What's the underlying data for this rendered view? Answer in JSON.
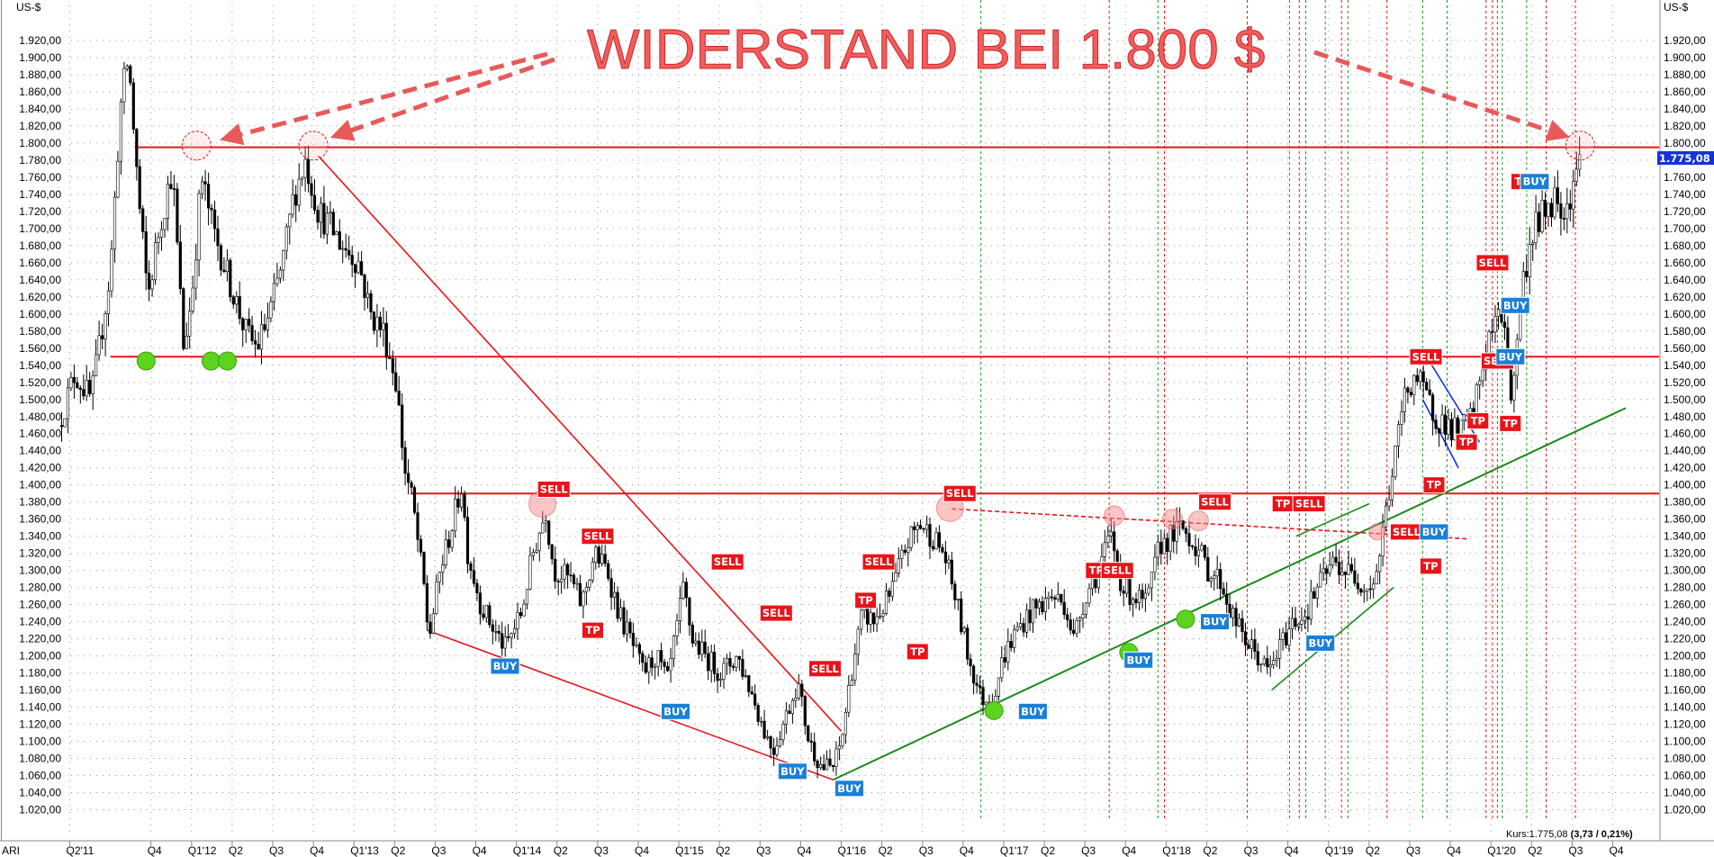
{
  "headline": "WIDERSTAND BEI 1.800 $",
  "unit_left": "US-$",
  "unit_right": "US-$",
  "symbol": "ARI",
  "status_prefix": "Kurs:1.775,08 ",
  "status_bold": "(3,73 / 0,21%)",
  "current_price_label": "1.775,08",
  "colors": {
    "sell": "#e8141a",
    "buy": "#1a7fd6",
    "tp": "#e8141a",
    "resistance": "#e8141a",
    "uptrend": "#1a8a1a",
    "channel": "#1432d6",
    "price_tag": "#1432d6"
  },
  "chart_data": {
    "type": "candlestick",
    "title": "WIDERSTAND BEI 1.800 $",
    "ylabel": "US-$",
    "ylim": [
      1000,
      1940
    ],
    "y_ticks": [
      1020,
      1040,
      1060,
      1080,
      1100,
      1120,
      1140,
      1160,
      1180,
      1200,
      1220,
      1240,
      1260,
      1280,
      1300,
      1320,
      1340,
      1360,
      1380,
      1400,
      1420,
      1440,
      1460,
      1480,
      1500,
      1520,
      1540,
      1560,
      1580,
      1600,
      1620,
      1640,
      1660,
      1680,
      1700,
      1720,
      1740,
      1760,
      1780,
      1800,
      1820,
      1840,
      1860,
      1880,
      1900,
      1920
    ],
    "y_tick_labels": [
      "1.020,00",
      "1.040,00",
      "1.060,00",
      "1.080,00",
      "1.100,00",
      "1.120,00",
      "1.140,00",
      "1.160,00",
      "1.180,00",
      "1.200,00",
      "1.220,00",
      "1.240,00",
      "1.260,00",
      "1.280,00",
      "1.300,00",
      "1.320,00",
      "1.340,00",
      "1.360,00",
      "1.380,00",
      "1.400,00",
      "1.420,00",
      "1.440,00",
      "1.460,00",
      "1.480,00",
      "1.500,00",
      "1.520,00",
      "1.540,00",
      "1.560,00",
      "1.580,00",
      "1.600,00",
      "1.620,00",
      "1.640,00",
      "1.660,00",
      "1.680,00",
      "1.700,00",
      "1.720,00",
      "1.740,00",
      "1.760,00",
      "1.780,00",
      "1.800,00",
      "1.820,00",
      "1.840,00",
      "1.860,00",
      "1.880,00",
      "1.900,00",
      "1.920,00"
    ],
    "x_ticks": [
      2011.25,
      2011.75,
      2012.0,
      2012.25,
      2012.5,
      2012.75,
      2013.0,
      2013.25,
      2013.5,
      2013.75,
      2014.0,
      2014.25,
      2014.5,
      2014.75,
      2015.0,
      2015.25,
      2015.5,
      2015.75,
      2016.0,
      2016.25,
      2016.5,
      2016.75,
      2017.0,
      2017.25,
      2017.5,
      2017.75,
      2018.0,
      2018.25,
      2018.5,
      2018.75,
      2019.0,
      2019.25,
      2019.5,
      2019.75,
      2020.0,
      2020.25,
      2020.5,
      2020.75
    ],
    "x_tick_labels": [
      "Q2'11",
      "Q4",
      "Q1'12",
      "Q2",
      "Q3",
      "Q4",
      "Q1'13",
      "Q2",
      "Q3",
      "Q4",
      "Q1'14",
      "Q2",
      "Q3",
      "Q4",
      "Q1'15",
      "Q2",
      "Q3",
      "Q4",
      "Q1'16",
      "Q2",
      "Q3",
      "Q4",
      "Q1'17",
      "Q2",
      "Q3",
      "Q4",
      "Q1'18",
      "Q2",
      "Q3",
      "Q4",
      "Q1'19",
      "Q2",
      "Q3",
      "Q4",
      "Q1'20",
      "Q2",
      "Q3",
      "Q4"
    ],
    "xlim": [
      2011.2,
      2020.9
    ],
    "price_anchors": [
      [
        2011.2,
        1470
      ],
      [
        2011.3,
        1530
      ],
      [
        2011.4,
        1500
      ],
      [
        2011.45,
        1560
      ],
      [
        2011.52,
        1650
      ],
      [
        2011.58,
        1840
      ],
      [
        2011.63,
        1900
      ],
      [
        2011.7,
        1720
      ],
      [
        2011.75,
        1620
      ],
      [
        2011.82,
        1700
      ],
      [
        2011.9,
        1770
      ],
      [
        2011.97,
        1560
      ],
      [
        2012.02,
        1620
      ],
      [
        2012.08,
        1760
      ],
      [
        2012.15,
        1700
      ],
      [
        2012.25,
        1640
      ],
      [
        2012.35,
        1580
      ],
      [
        2012.42,
        1560
      ],
      [
        2012.5,
        1600
      ],
      [
        2012.58,
        1660
      ],
      [
        2012.65,
        1740
      ],
      [
        2012.72,
        1780
      ],
      [
        2012.8,
        1720
      ],
      [
        2012.88,
        1700
      ],
      [
        2012.95,
        1680
      ],
      [
        2013.05,
        1660
      ],
      [
        2013.12,
        1600
      ],
      [
        2013.2,
        1580
      ],
      [
        2013.28,
        1520
      ],
      [
        2013.33,
        1420
      ],
      [
        2013.38,
        1380
      ],
      [
        2013.45,
        1280
      ],
      [
        2013.48,
        1220
      ],
      [
        2013.55,
        1300
      ],
      [
        2013.62,
        1350
      ],
      [
        2013.68,
        1400
      ],
      [
        2013.72,
        1320
      ],
      [
        2013.8,
        1260
      ],
      [
        2013.88,
        1230
      ],
      [
        2013.95,
        1210
      ],
      [
        2014.05,
        1250
      ],
      [
        2014.12,
        1320
      ],
      [
        2014.2,
        1370
      ],
      [
        2014.25,
        1300
      ],
      [
        2014.35,
        1290
      ],
      [
        2014.42,
        1260
      ],
      [
        2014.5,
        1320
      ],
      [
        2014.58,
        1300
      ],
      [
        2014.65,
        1250
      ],
      [
        2014.72,
        1220
      ],
      [
        2014.8,
        1180
      ],
      [
        2014.88,
        1200
      ],
      [
        2014.95,
        1170
      ],
      [
        2015.05,
        1280
      ],
      [
        2015.1,
        1220
      ],
      [
        2015.18,
        1200
      ],
      [
        2015.28,
        1180
      ],
      [
        2015.38,
        1200
      ],
      [
        2015.48,
        1150
      ],
      [
        2015.55,
        1110
      ],
      [
        2015.6,
        1090
      ],
      [
        2015.68,
        1130
      ],
      [
        2015.75,
        1170
      ],
      [
        2015.82,
        1100
      ],
      [
        2015.9,
        1070
      ],
      [
        2015.97,
        1070
      ],
      [
        2016.02,
        1100
      ],
      [
        2016.08,
        1180
      ],
      [
        2016.15,
        1250
      ],
      [
        2016.22,
        1240
      ],
      [
        2016.32,
        1270
      ],
      [
        2016.42,
        1330
      ],
      [
        2016.5,
        1355
      ],
      [
        2016.58,
        1340
      ],
      [
        2016.65,
        1320
      ],
      [
        2016.72,
        1270
      ],
      [
        2016.8,
        1200
      ],
      [
        2016.88,
        1150
      ],
      [
        2016.95,
        1150
      ],
      [
        2017.02,
        1200
      ],
      [
        2017.1,
        1230
      ],
      [
        2017.18,
        1250
      ],
      [
        2017.25,
        1260
      ],
      [
        2017.32,
        1270
      ],
      [
        2017.4,
        1260
      ],
      [
        2017.45,
        1220
      ],
      [
        2017.52,
        1270
      ],
      [
        2017.6,
        1300
      ],
      [
        2017.68,
        1340
      ],
      [
        2017.75,
        1280
      ],
      [
        2017.82,
        1270
      ],
      [
        2017.9,
        1260
      ],
      [
        2017.98,
        1330
      ],
      [
        2018.05,
        1340
      ],
      [
        2018.12,
        1350
      ],
      [
        2018.2,
        1330
      ],
      [
        2018.28,
        1300
      ],
      [
        2018.35,
        1290
      ],
      [
        2018.42,
        1250
      ],
      [
        2018.5,
        1220
      ],
      [
        2018.58,
        1200
      ],
      [
        2018.65,
        1180
      ],
      [
        2018.72,
        1210
      ],
      [
        2018.8,
        1240
      ],
      [
        2018.88,
        1250
      ],
      [
        2018.95,
        1280
      ],
      [
        2019.05,
        1310
      ],
      [
        2019.12,
        1300
      ],
      [
        2019.2,
        1290
      ],
      [
        2019.27,
        1280
      ],
      [
        2019.32,
        1300
      ],
      [
        2019.38,
        1380
      ],
      [
        2019.42,
        1420
      ],
      [
        2019.48,
        1500
      ],
      [
        2019.55,
        1530
      ],
      [
        2019.6,
        1510
      ],
      [
        2019.68,
        1480
      ],
      [
        2019.75,
        1470
      ],
      [
        2019.82,
        1460
      ],
      [
        2019.9,
        1480
      ],
      [
        2019.95,
        1520
      ],
      [
        2020.0,
        1570
      ],
      [
        2020.05,
        1590
      ],
      [
        2020.1,
        1600
      ],
      [
        2020.15,
        1490
      ],
      [
        2020.2,
        1620
      ],
      [
        2020.28,
        1700
      ],
      [
        2020.35,
        1720
      ],
      [
        2020.42,
        1740
      ],
      [
        2020.48,
        1720
      ],
      [
        2020.55,
        1775
      ]
    ],
    "horizontal_levels": [
      1795,
      1550,
      1390
    ],
    "current_price": 1775.08,
    "change": 3.73,
    "change_pct": 0.21,
    "signals": [
      {
        "label": "SELL",
        "x": 2014.23,
        "y": 1395
      },
      {
        "label": "BUY",
        "x": 2013.93,
        "y": 1188
      },
      {
        "label": "SELL",
        "x": 2014.5,
        "y": 1340
      },
      {
        "label": "TP",
        "x": 2014.47,
        "y": 1230
      },
      {
        "label": "BUY",
        "x": 2014.98,
        "y": 1135
      },
      {
        "label": "SELL",
        "x": 2015.3,
        "y": 1310
      },
      {
        "label": "SELL",
        "x": 2015.6,
        "y": 1250
      },
      {
        "label": "BUY",
        "x": 2015.7,
        "y": 1065
      },
      {
        "label": "SELL",
        "x": 2015.9,
        "y": 1185
      },
      {
        "label": "BUY",
        "x": 2016.05,
        "y": 1045
      },
      {
        "label": "TP",
        "x": 2016.15,
        "y": 1265
      },
      {
        "label": "SELL",
        "x": 2016.23,
        "y": 1310
      },
      {
        "label": "TP",
        "x": 2016.47,
        "y": 1205
      },
      {
        "label": "SELL",
        "x": 2016.73,
        "y": 1390
      },
      {
        "label": "BUY",
        "x": 2017.18,
        "y": 1135
      },
      {
        "label": "TP",
        "x": 2017.57,
        "y": 1300
      },
      {
        "label": "SELL",
        "x": 2017.7,
        "y": 1300
      },
      {
        "label": "BUY",
        "x": 2017.83,
        "y": 1195
      },
      {
        "label": "SELL",
        "x": 2018.3,
        "y": 1380
      },
      {
        "label": "BUY",
        "x": 2018.3,
        "y": 1240
      },
      {
        "label": "TP",
        "x": 2018.72,
        "y": 1378
      },
      {
        "label": "SELL",
        "x": 2018.88,
        "y": 1378
      },
      {
        "label": "BUY",
        "x": 2018.95,
        "y": 1215
      },
      {
        "label": "SELL",
        "x": 2019.48,
        "y": 1345
      },
      {
        "label": "TP",
        "x": 2019.63,
        "y": 1305
      },
      {
        "label": "BUY",
        "x": 2019.65,
        "y": 1345
      },
      {
        "label": "TP",
        "x": 2019.65,
        "y": 1400
      },
      {
        "label": "SELL",
        "x": 2019.6,
        "y": 1550
      },
      {
        "label": "TP",
        "x": 2019.85,
        "y": 1450
      },
      {
        "label": "TP",
        "x": 2019.92,
        "y": 1475
      },
      {
        "label": "SELL",
        "x": 2020.04,
        "y": 1545
      },
      {
        "label": "BUY",
        "x": 2020.12,
        "y": 1550
      },
      {
        "label": "TP",
        "x": 2020.12,
        "y": 1472
      },
      {
        "label": "SELL",
        "x": 2020.01,
        "y": 1660
      },
      {
        "label": "BUY",
        "x": 2020.15,
        "y": 1610
      },
      {
        "label": "TP",
        "x": 2020.19,
        "y": 1755
      },
      {
        "label": "BUY",
        "x": 2020.27,
        "y": 1755
      }
    ]
  }
}
